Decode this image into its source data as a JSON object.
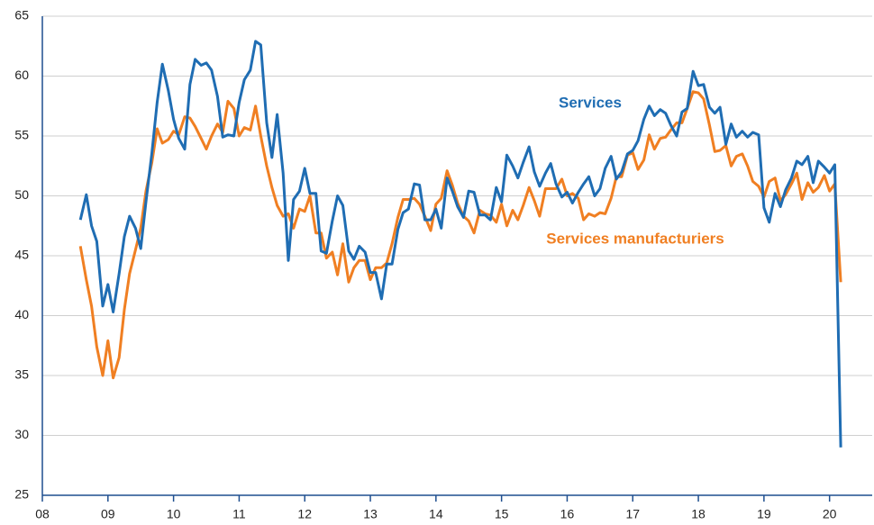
{
  "chart_data": {
    "type": "line",
    "x": [
      2008.58,
      2008.67,
      2008.75,
      2008.83,
      2008.92,
      2009.0,
      2009.08,
      2009.17,
      2009.25,
      2009.33,
      2009.42,
      2009.5,
      2009.58,
      2009.67,
      2009.75,
      2009.83,
      2009.92,
      2010.0,
      2010.08,
      2010.17,
      2010.25,
      2010.33,
      2010.42,
      2010.5,
      2010.58,
      2010.67,
      2010.75,
      2010.83,
      2010.92,
      2011.0,
      2011.08,
      2011.17,
      2011.25,
      2011.33,
      2011.42,
      2011.5,
      2011.58,
      2011.67,
      2011.75,
      2011.83,
      2011.92,
      2012.0,
      2012.08,
      2012.17,
      2012.25,
      2012.33,
      2012.42,
      2012.5,
      2012.58,
      2012.67,
      2012.75,
      2012.83,
      2012.92,
      2013.0,
      2013.08,
      2013.17,
      2013.25,
      2013.33,
      2013.42,
      2013.5,
      2013.58,
      2013.67,
      2013.75,
      2013.83,
      2013.92,
      2014.0,
      2014.08,
      2014.17,
      2014.25,
      2014.33,
      2014.42,
      2014.5,
      2014.58,
      2014.67,
      2014.75,
      2014.83,
      2014.92,
      2015.0,
      2015.08,
      2015.17,
      2015.25,
      2015.33,
      2015.42,
      2015.5,
      2015.58,
      2015.67,
      2015.75,
      2015.83,
      2015.92,
      2016.0,
      2016.08,
      2016.17,
      2016.25,
      2016.33,
      2016.42,
      2016.5,
      2016.58,
      2016.67,
      2016.75,
      2016.83,
      2016.92,
      2017.0,
      2017.08,
      2017.17,
      2017.25,
      2017.33,
      2017.42,
      2017.5,
      2017.58,
      2017.67,
      2017.75,
      2017.83,
      2017.92,
      2018.0,
      2018.08,
      2018.17,
      2018.25,
      2018.33,
      2018.42,
      2018.5,
      2018.58,
      2018.67,
      2018.75,
      2018.83,
      2018.92,
      2019.0,
      2019.08,
      2019.17,
      2019.25,
      2019.33,
      2019.42,
      2019.5,
      2019.58,
      2019.67,
      2019.75,
      2019.83,
      2019.92,
      2020.0,
      2020.08,
      2020.17
    ],
    "series": [
      {
        "name": "Services",
        "color": "#1f6db3",
        "values": [
          48,
          50.1,
          47.5,
          46.2,
          40.8,
          42.6,
          40.3,
          43.5,
          46.6,
          48.3,
          47.3,
          45.6,
          49.5,
          53.6,
          57.8,
          61.0,
          58.8,
          56.4,
          54.8,
          53.9,
          59.3,
          61.4,
          60.9,
          61.1,
          60.5,
          58.3,
          54.9,
          55.1,
          55.0,
          57.8,
          59.7,
          60.5,
          62.9,
          62.6,
          56.1,
          53.2,
          56.8,
          51.9,
          44.6,
          49.7,
          50.4,
          52.3,
          50.2,
          50.2,
          45.4,
          45.2,
          47.9,
          50.0,
          49.2,
          45.4,
          44.7,
          45.8,
          45.3,
          43.6,
          43.6,
          41.4,
          44.3,
          44.3,
          47.2,
          48.6,
          48.9,
          51.0,
          50.9,
          48.0,
          48.0,
          48.9,
          47.3,
          51.5,
          50.4,
          49.1,
          48.2,
          50.4,
          50.3,
          48.4,
          48.4,
          48.0,
          50.7,
          49.5,
          53.4,
          52.5,
          51.5,
          52.8,
          54.1,
          52.0,
          50.8,
          51.9,
          52.7,
          51.0,
          49.9,
          50.3,
          49.4,
          50.3,
          51.0,
          51.6,
          50.0,
          50.6,
          52.3,
          53.3,
          51.4,
          52.0,
          53.5,
          53.8,
          54.6,
          56.4,
          57.5,
          56.7,
          57.2,
          56.9,
          55.9,
          55.0,
          57.0,
          57.3,
          60.4,
          59.2,
          59.3,
          57.4,
          56.9,
          57.4,
          54.3,
          56.0,
          54.9,
          55.4,
          54.9,
          55.3,
          55.1,
          49.0,
          47.8,
          50.2,
          49.1,
          50.5,
          51.5,
          52.9,
          52.6,
          53.3,
          51.1,
          52.9,
          52.4,
          51.9,
          52.6,
          29.0
        ]
      },
      {
        "name": "Services manufacturiers",
        "color": "#f07f22",
        "values": [
          45.8,
          43.0,
          40.8,
          37.4,
          35.0,
          37.9,
          34.8,
          36.5,
          40.5,
          43.5,
          45.5,
          47.3,
          50.4,
          52.8,
          55.6,
          54.4,
          54.7,
          55.4,
          55.1,
          56.6,
          56.5,
          55.8,
          54.8,
          53.9,
          55.0,
          56.0,
          55.3,
          57.9,
          57.3,
          55.0,
          55.7,
          55.5,
          57.5,
          55.0,
          52.5,
          50.7,
          49.2,
          48.3,
          48.5,
          47.3,
          48.9,
          48.7,
          50.0,
          46.9,
          46.9,
          44.8,
          45.3,
          43.4,
          46.0,
          42.8,
          44.0,
          44.6,
          44.6,
          43.0,
          44.0,
          44.0,
          44.4,
          46.0,
          48.2,
          49.7,
          49.7,
          49.8,
          49.3,
          48.3,
          47.1,
          49.3,
          49.8,
          52.1,
          50.9,
          49.4,
          48.3,
          47.9,
          46.9,
          48.8,
          48.5,
          48.4,
          47.8,
          49.3,
          47.5,
          48.8,
          48.0,
          49.2,
          50.7,
          49.6,
          48.3,
          50.6,
          50.6,
          50.6,
          51.4,
          50.0,
          50.2,
          49.8,
          48.0,
          48.5,
          48.3,
          48.6,
          48.5,
          49.8,
          51.6,
          51.6,
          53.4,
          53.6,
          52.2,
          53.0,
          55.1,
          53.9,
          54.8,
          54.9,
          55.5,
          56.1,
          56.1,
          57.3,
          58.7,
          58.6,
          58.1,
          55.9,
          53.7,
          53.8,
          54.2,
          52.5,
          53.3,
          53.5,
          52.5,
          51.2,
          50.8,
          49.9,
          51.2,
          51.5,
          49.6,
          50.1,
          51.0,
          51.9,
          49.7,
          51.1,
          50.3,
          50.7,
          51.7,
          50.4,
          51.0,
          42.8
        ]
      }
    ],
    "xlim": [
      2008,
      2020.65
    ],
    "xticks": [
      {
        "value": 2008,
        "label": "08"
      },
      {
        "value": 2009,
        "label": "09"
      },
      {
        "value": 2010,
        "label": "10"
      },
      {
        "value": 2011,
        "label": "11"
      },
      {
        "value": 2012,
        "label": "12"
      },
      {
        "value": 2013,
        "label": "13"
      },
      {
        "value": 2014,
        "label": "14"
      },
      {
        "value": 2015,
        "label": "15"
      },
      {
        "value": 2016,
        "label": "16"
      },
      {
        "value": 2017,
        "label": "17"
      },
      {
        "value": 2018,
        "label": "18"
      },
      {
        "value": 2019,
        "label": "19"
      },
      {
        "value": 2020,
        "label": "20"
      }
    ],
    "ylim": [
      25,
      65
    ],
    "yticks": [
      25,
      30,
      35,
      40,
      45,
      50,
      55,
      60,
      65
    ],
    "grid": true
  }
}
